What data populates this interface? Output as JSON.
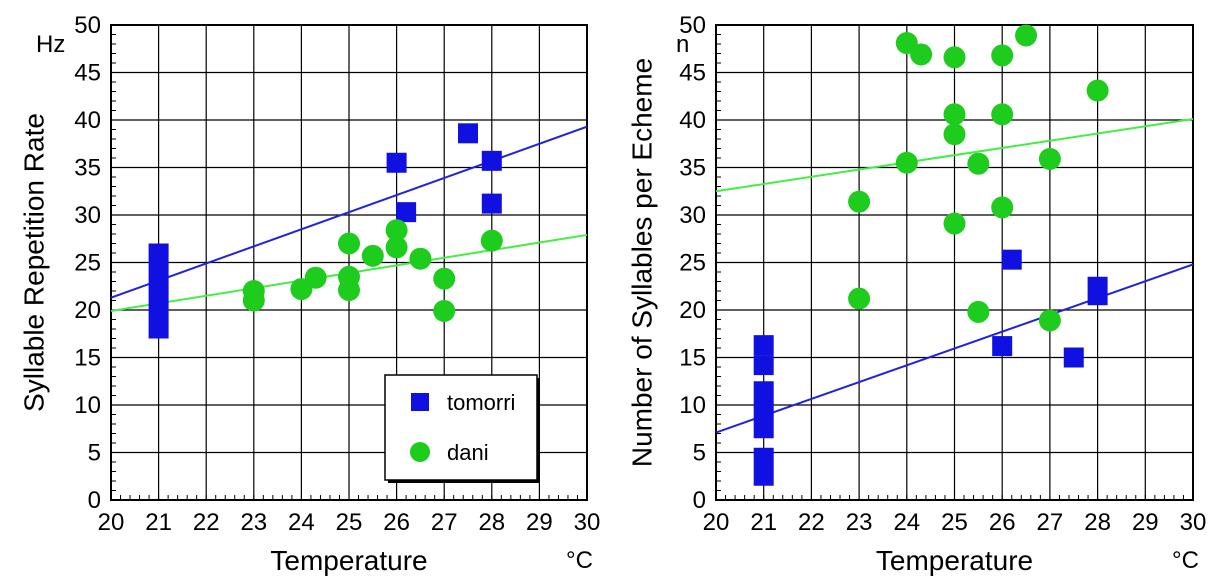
{
  "chart_data": [
    {
      "type": "scatter",
      "xlabel": "Temperature",
      "xunit": "°C",
      "ylabel": "Syllable Repetition Rate",
      "yunit": "Hz",
      "xlim": [
        20,
        30
      ],
      "ylim": [
        0,
        50
      ],
      "xticks": [
        20,
        21,
        22,
        23,
        24,
        25,
        26,
        27,
        28,
        29,
        30
      ],
      "yticks": [
        0,
        5,
        10,
        15,
        20,
        25,
        30,
        35,
        40,
        45,
        50
      ],
      "grid": true,
      "legend_position": "bottom-right",
      "series": [
        {
          "name": "tomorri",
          "marker": "square",
          "color": "#1010e0",
          "points": [
            [
              26,
              35.5
            ],
            [
              26.2,
              30.3
            ],
            [
              27.5,
              38.6
            ],
            [
              28,
              35.7
            ],
            [
              28,
              31.2
            ]
          ],
          "ranges": [
            {
              "x": 21,
              "y_min": 17,
              "y_max": 27
            }
          ]
        },
        {
          "name": "dani",
          "marker": "circle",
          "color": "#1ecc1e",
          "points": [
            [
              23,
              22
            ],
            [
              23,
              21
            ],
            [
              24,
              22.2
            ],
            [
              24.3,
              23.4
            ],
            [
              25,
              27
            ],
            [
              25,
              23.5
            ],
            [
              25,
              22.1
            ],
            [
              25.5,
              25.7
            ],
            [
              26,
              28.4
            ],
            [
              26,
              26.6
            ],
            [
              26.5,
              25.4
            ],
            [
              27,
              23.3
            ],
            [
              27,
              19.9
            ],
            [
              28,
              27.3
            ]
          ]
        }
      ],
      "fit_lines": [
        {
          "series": "tomorri",
          "color": "#2222dd",
          "points": [
            [
              20,
              21.3
            ],
            [
              30,
              39.3
            ]
          ]
        },
        {
          "series": "dani",
          "color": "#44ee44",
          "points": [
            [
              20,
              19.9
            ],
            [
              30,
              27.9
            ]
          ]
        }
      ]
    },
    {
      "type": "scatter",
      "xlabel": "Temperature",
      "xunit": "°C",
      "ylabel": "Number of Syllables per Echeme",
      "yunit": "n",
      "xlim": [
        20,
        30
      ],
      "ylim": [
        0,
        50
      ],
      "xticks": [
        20,
        21,
        22,
        23,
        24,
        25,
        26,
        27,
        28,
        29,
        30
      ],
      "yticks": [
        0,
        5,
        10,
        15,
        20,
        25,
        30,
        35,
        40,
        45,
        50
      ],
      "grid": true,
      "series": [
        {
          "name": "tomorri",
          "marker": "square",
          "color": "#1010e0",
          "points": [
            [
              21,
              16.3
            ],
            [
              21,
              14.2
            ],
            [
              26,
              16.2
            ],
            [
              26.2,
              25.3
            ],
            [
              27.5,
              15
            ]
          ],
          "ranges": [
            {
              "x": 21,
              "y_min": 6.5,
              "y_max": 12.5
            },
            {
              "x": 21,
              "y_min": 1.5,
              "y_max": 5.5
            },
            {
              "x": 28,
              "y_min": 20.5,
              "y_max": 23.5
            }
          ]
        },
        {
          "name": "dani",
          "marker": "circle",
          "color": "#1ecc1e",
          "points": [
            [
              23,
              31.4
            ],
            [
              23,
              21.2
            ],
            [
              24,
              48.1
            ],
            [
              24,
              35.5
            ],
            [
              24.3,
              46.9
            ],
            [
              25,
              46.6
            ],
            [
              25,
              40.6
            ],
            [
              25,
              38.5
            ],
            [
              25,
              29.1
            ],
            [
              25.5,
              35.4
            ],
            [
              25.5,
              19.8
            ],
            [
              26,
              46.8
            ],
            [
              26,
              40.6
            ],
            [
              26,
              30.8
            ],
            [
              26.5,
              48.9
            ],
            [
              27,
              35.9
            ],
            [
              27,
              18.9
            ],
            [
              28,
              43.1
            ]
          ]
        }
      ],
      "fit_lines": [
        {
          "series": "dani",
          "color": "#44ee44",
          "points": [
            [
              20,
              32.5
            ],
            [
              30,
              40.1
            ]
          ]
        },
        {
          "series": "tomorri",
          "color": "#2222dd",
          "points": [
            [
              20,
              7.1
            ],
            [
              30,
              24.8
            ]
          ]
        }
      ]
    }
  ]
}
